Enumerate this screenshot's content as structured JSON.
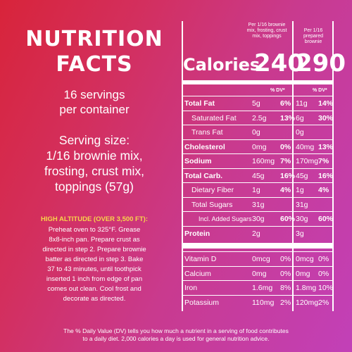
{
  "left": {
    "title_line1": "NUTRITION",
    "title_line2": "FACTS",
    "servings_line1": "16 servings",
    "servings_line2": "per container",
    "serving_size_line1": "Serving size:",
    "serving_size_line2": "1/16 brownie mix,",
    "serving_size_line3": "frosting, crust mix,",
    "serving_size_line4": "toppings (57g)",
    "high_altitude_heading": "HIGH ALTITUDE (OVER 3,500 FT):",
    "high_altitude_lines": [
      "Preheat oven to 325°F. Grease",
      "8x8-inch pan. Prepare crust as",
      "directed in step 2. Prepare brownie",
      "batter as directed in step 3. Bake",
      "37 to 43 minutes, until toothpick",
      "inserted 1 inch from edge of pan",
      "comes out clean. Cool frost and",
      "decorate as directed."
    ]
  },
  "table": {
    "col1_header_lines": [
      "Per 1/16 brownie",
      "mix, frosting, crust",
      "mix, toppings"
    ],
    "col2_header_lines": [
      "Per 1/16 prepared",
      "brownie"
    ],
    "calories_label": "Calories",
    "calories_col1": "240",
    "calories_col2": "290",
    "dv_label": "% DV*",
    "rows": [
      {
        "label": "Total Fat",
        "style": "bold",
        "a1": "5g",
        "p1": "6%",
        "a2": "11g",
        "p2": "14%"
      },
      {
        "label": "Saturated Fat",
        "style": "indent",
        "a1": "2.5g",
        "p1": "13%",
        "a2": "6g",
        "p2": "30%"
      },
      {
        "label": "Trans Fat",
        "style": "indent",
        "a1": "0g",
        "p1": "",
        "a2": "0g",
        "p2": ""
      },
      {
        "label": "Cholesterol",
        "style": "bold",
        "a1": "0mg",
        "p1": "0%",
        "a2": "40mg",
        "p2": "13%"
      },
      {
        "label": "Sodium",
        "style": "bold",
        "a1": "160mg",
        "p1": "7%",
        "a2": "170mg",
        "p2": "7%"
      },
      {
        "label": "Total Carb.",
        "style": "bold",
        "a1": "45g",
        "p1": "16%",
        "a2": "45g",
        "p2": "16%"
      },
      {
        "label": "Dietary Fiber",
        "style": "indent",
        "a1": "1g",
        "p1": "4%",
        "a2": "1g",
        "p2": "4%"
      },
      {
        "label": "Total Sugars",
        "style": "indent",
        "a1": "31g",
        "p1": "",
        "a2": "31g",
        "p2": ""
      },
      {
        "label": "Incl. Added Sugars",
        "style": "indent2",
        "a1": "30g",
        "p1": "60%",
        "a2": "30g",
        "p2": "60%"
      },
      {
        "label": "Protein",
        "style": "bold",
        "a1": "2g",
        "p1": "",
        "a2": "3g",
        "p2": ""
      }
    ],
    "vitamin_rows": [
      {
        "label": "Vitamin D",
        "a1": "0mcg",
        "p1": "0%",
        "a2": "0mcg",
        "p2": "0%"
      },
      {
        "label": "Calcium",
        "a1": "0mg",
        "p1": "0%",
        "a2": "0mg",
        "p2": "0%"
      },
      {
        "label": "Iron",
        "a1": "1.6mg",
        "p1": "8%",
        "a2": "1.8mg",
        "p2": "10%"
      },
      {
        "label": "Potassium",
        "a1": "110mg",
        "p1": "2%",
        "a2": "120mg",
        "p2": "2%"
      }
    ]
  },
  "footnote_line1": "The % Daily Value (DV) tells you how much a nutrient in a serving of food contributes",
  "footnote_line2": "to a daily diet. 2,000 calories a day is used for general nutrition advice."
}
